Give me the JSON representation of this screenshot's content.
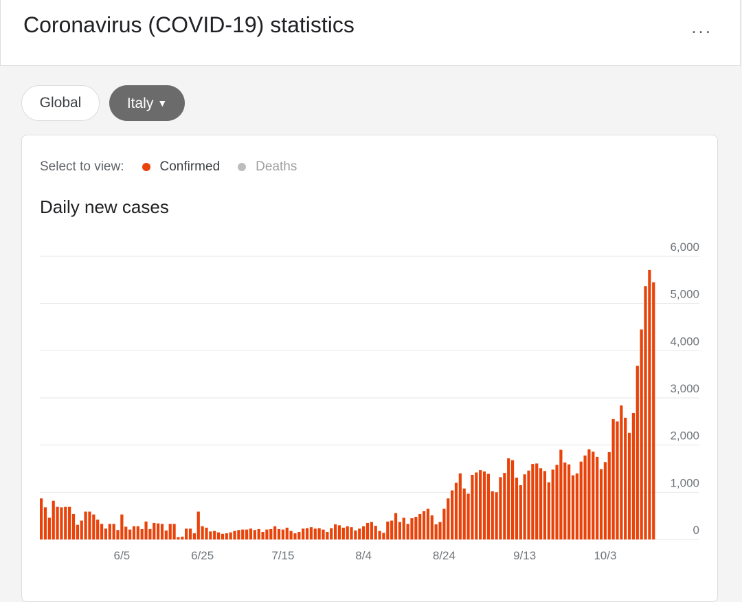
{
  "header": {
    "title": "Coronavirus (COVID-19) statistics",
    "more_label": "..."
  },
  "filters": {
    "global_label": "Global",
    "region_label": "Italy",
    "region_caret": "▼"
  },
  "selector": {
    "prompt": "Select to view:",
    "options": [
      {
        "label": "Confirmed",
        "color": "#e8430a",
        "selected": true
      },
      {
        "label": "Deaths",
        "color": "#bdbdbd",
        "selected": false
      }
    ]
  },
  "chart_data": {
    "type": "bar",
    "title": "Daily new cases",
    "xlabel": "",
    "ylabel": "",
    "ylim": [
      0,
      6000
    ],
    "yticks": [
      0,
      1000,
      2000,
      3000,
      4000,
      5000,
      6000
    ],
    "ytick_labels": [
      "0",
      "1,000",
      "2,000",
      "3,000",
      "4,000",
      "5,000",
      "6,000"
    ],
    "xtick_labels": [
      "6/5",
      "6/25",
      "7/15",
      "8/4",
      "8/24",
      "9/13",
      "10/3"
    ],
    "xtick_indices": [
      20,
      40,
      60,
      80,
      100,
      120,
      140
    ],
    "grid": true,
    "bar_color": "#e8430a",
    "values": [
      870,
      680,
      460,
      820,
      690,
      680,
      690,
      690,
      540,
      310,
      400,
      590,
      590,
      530,
      420,
      330,
      230,
      330,
      330,
      200,
      530,
      270,
      210,
      280,
      280,
      220,
      380,
      220,
      350,
      340,
      330,
      190,
      330,
      330,
      50,
      60,
      230,
      230,
      130,
      590,
      280,
      250,
      170,
      180,
      150,
      120,
      130,
      150,
      180,
      200,
      210,
      210,
      230,
      200,
      220,
      160,
      210,
      220,
      280,
      220,
      210,
      250,
      180,
      130,
      160,
      230,
      240,
      260,
      230,
      240,
      210,
      160,
      240,
      320,
      300,
      250,
      280,
      260,
      190,
      230,
      280,
      350,
      370,
      290,
      180,
      140,
      380,
      400,
      560,
      370,
      460,
      330,
      450,
      480,
      540,
      600,
      650,
      510,
      320,
      370,
      650,
      870,
      1040,
      1200,
      1400,
      1080,
      970,
      1370,
      1420,
      1470,
      1440,
      1390,
      1020,
      1000,
      1320,
      1410,
      1720,
      1680,
      1310,
      1150,
      1380,
      1460,
      1600,
      1610,
      1510,
      1450,
      1210,
      1480,
      1580,
      1900,
      1630,
      1590,
      1360,
      1400,
      1650,
      1780,
      1910,
      1860,
      1750,
      1490,
      1640,
      1850,
      2550,
      2500,
      2840,
      2580,
      2260,
      2680,
      3680,
      4450,
      5370,
      5710,
      5450
    ]
  }
}
